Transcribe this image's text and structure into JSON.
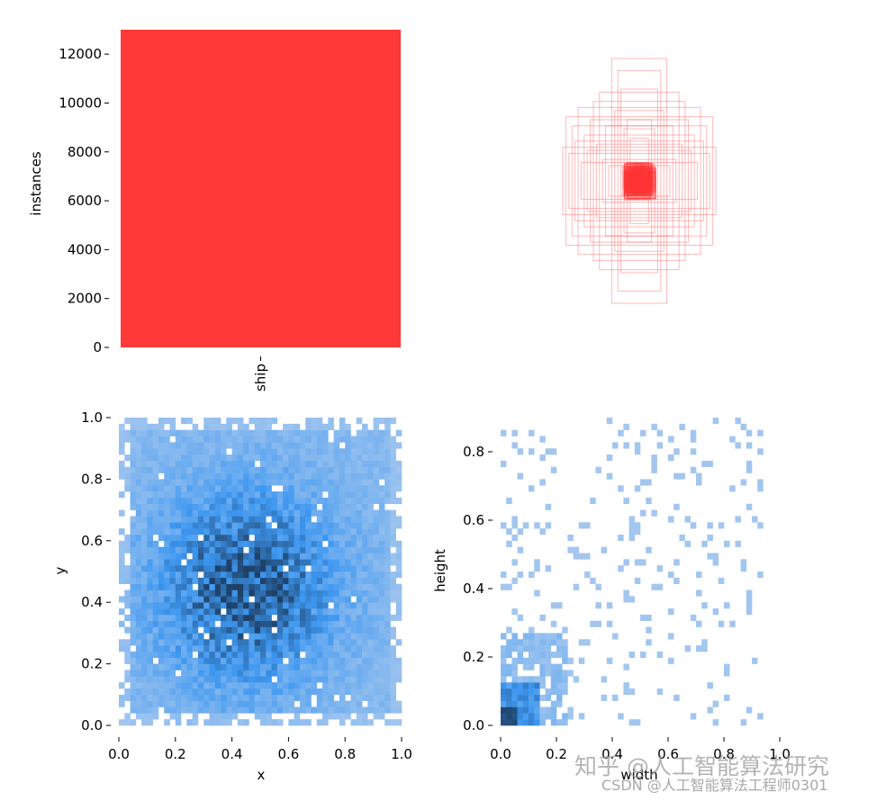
{
  "chart_data": [
    {
      "type": "bar",
      "categories": [
        "ship"
      ],
      "values": [
        13000
      ],
      "ylabel": "instances",
      "ylim": [
        0,
        13000
      ],
      "yticks": [
        0,
        2000,
        4000,
        6000,
        8000,
        10000,
        12000
      ],
      "colors": [
        "#ff3838"
      ]
    },
    {
      "type": "other",
      "description_kind": "box-overlay",
      "box_color": "#ff3838",
      "boxes": [
        {
          "w": 0.48,
          "h": 0.42
        },
        {
          "w": 0.44,
          "h": 0.36
        },
        {
          "w": 0.4,
          "h": 0.48
        },
        {
          "w": 0.36,
          "h": 0.3
        },
        {
          "w": 0.3,
          "h": 0.52
        },
        {
          "w": 0.26,
          "h": 0.58
        },
        {
          "w": 0.18,
          "h": 0.8
        },
        {
          "w": 0.14,
          "h": 0.72
        },
        {
          "w": 0.5,
          "h": 0.22
        },
        {
          "w": 0.46,
          "h": 0.18
        },
        {
          "w": 0.42,
          "h": 0.26
        },
        {
          "w": 0.34,
          "h": 0.2
        },
        {
          "w": 0.24,
          "h": 0.14
        },
        {
          "w": 0.2,
          "h": 0.1
        },
        {
          "w": 0.1,
          "h": 0.34
        },
        {
          "w": 0.08,
          "h": 0.4
        },
        {
          "w": 0.06,
          "h": 0.28
        },
        {
          "w": 0.05,
          "h": 0.06
        },
        {
          "w": 0.04,
          "h": 0.05
        },
        {
          "w": 0.03,
          "h": 0.04
        },
        {
          "w": 0.06,
          "h": 0.04
        },
        {
          "w": 0.04,
          "h": 0.07
        },
        {
          "w": 0.05,
          "h": 0.05
        },
        {
          "w": 0.03,
          "h": 0.03
        },
        {
          "w": 0.28,
          "h": 0.24
        },
        {
          "w": 0.32,
          "h": 0.4
        },
        {
          "w": 0.22,
          "h": 0.36
        },
        {
          "w": 0.16,
          "h": 0.46
        },
        {
          "w": 0.12,
          "h": 0.6
        },
        {
          "w": 0.38,
          "h": 0.12
        }
      ]
    },
    {
      "type": "heatmap",
      "xlabel": "x",
      "ylabel": "y",
      "xlim": [
        0,
        1
      ],
      "ylim": [
        0,
        1
      ],
      "xticks": [
        0.0,
        0.2,
        0.4,
        0.6,
        0.8,
        1.0
      ],
      "yticks": [
        0.0,
        0.2,
        0.4,
        0.6,
        0.8,
        1.0
      ],
      "bins": 50,
      "color_light": "#a7c8ef",
      "color_mid": "#3d97f0",
      "color_dark": "#1e4168"
    },
    {
      "type": "heatmap",
      "xlabel": "width",
      "ylabel": "height",
      "xlim": [
        0,
        1
      ],
      "ylim": [
        0,
        0.9
      ],
      "xticks": [
        0.0,
        0.2,
        0.4,
        0.6,
        0.8,
        1.0
      ],
      "yticks": [
        0.0,
        0.2,
        0.4,
        0.6,
        0.8
      ],
      "bins": 50,
      "color_light": "#a7c8ef",
      "color_mid": "#3d97f0",
      "color_dark": "#1e4168"
    }
  ],
  "watermark": {
    "line1": "知乎 @人工智能算法研究",
    "line2": "CSDN @人工智能算法工程师0301"
  }
}
